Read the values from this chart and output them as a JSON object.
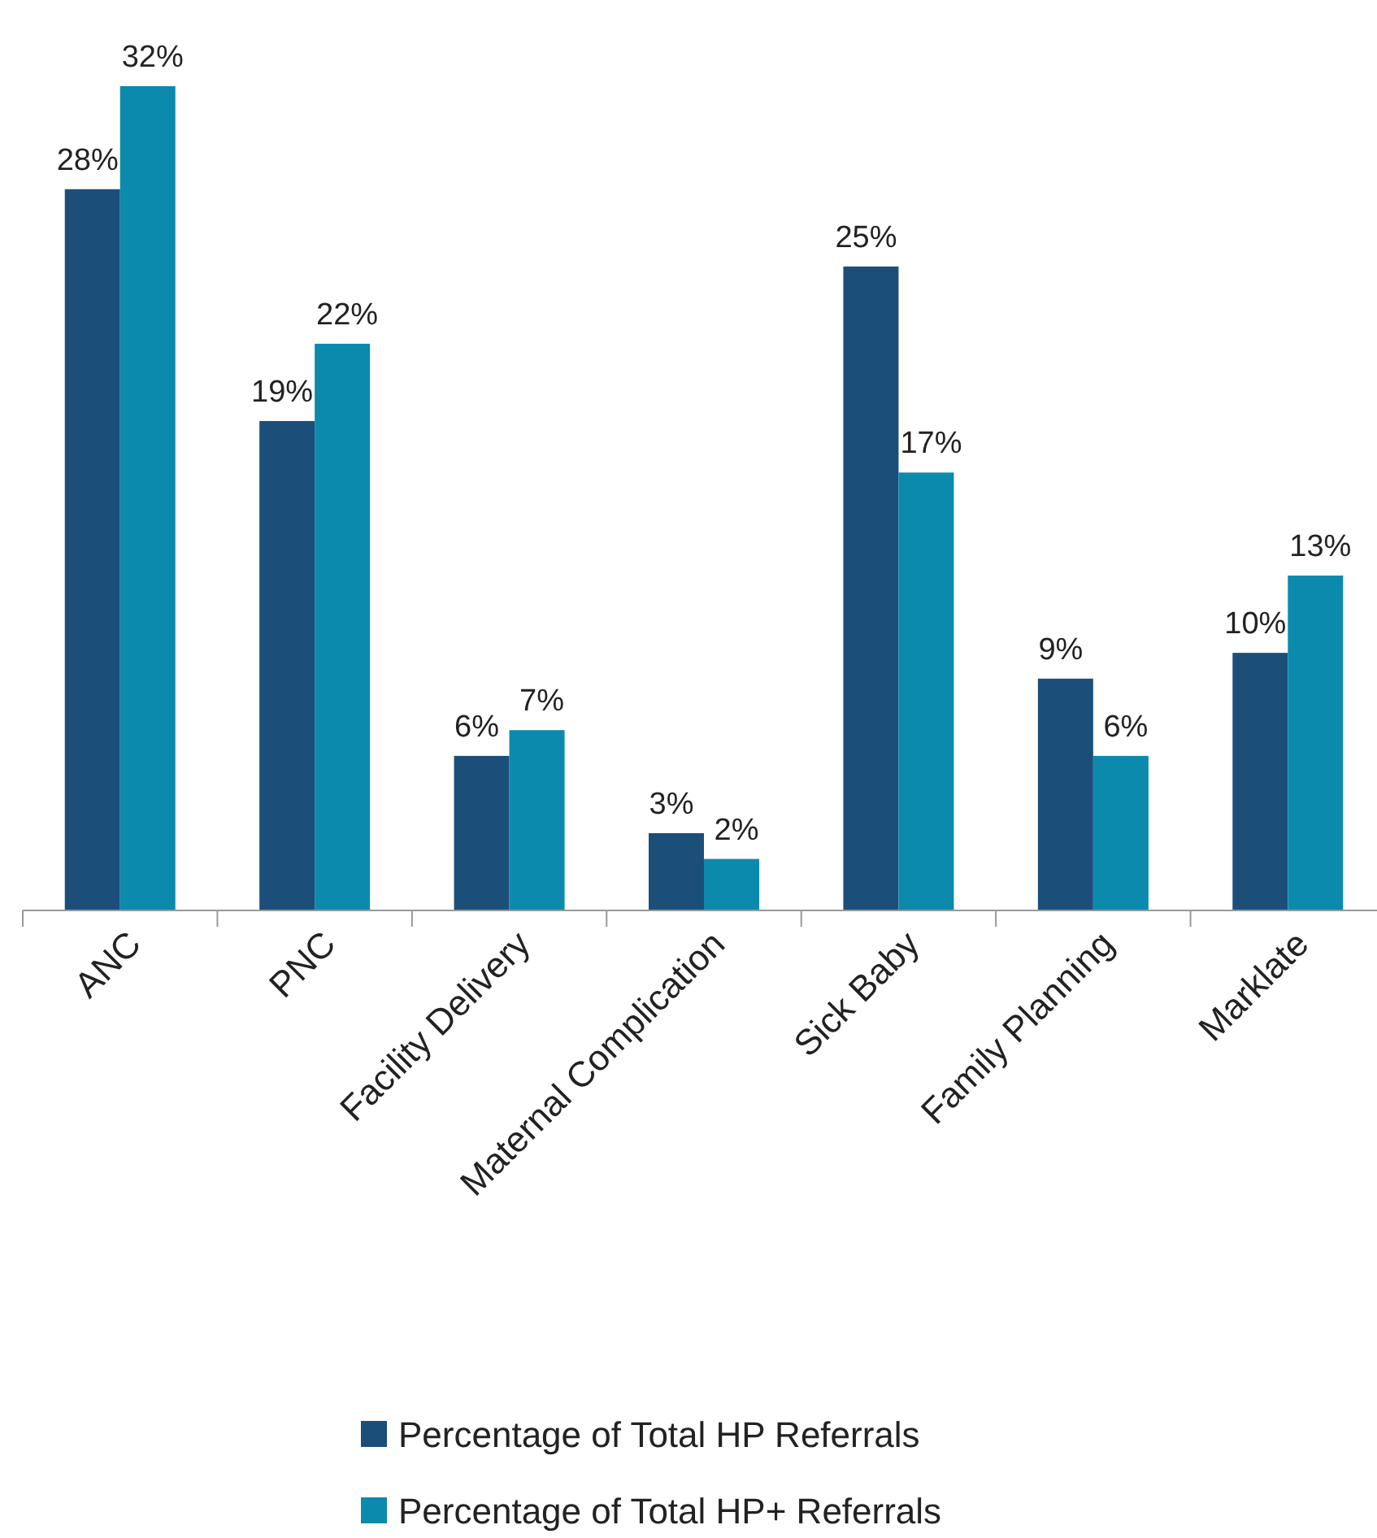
{
  "chart_data": {
    "type": "bar",
    "categories": [
      "ANC",
      "PNC",
      "Facility Delivery",
      "Maternal Complication",
      "Sick Baby",
      "Family Planning",
      "Marklate"
    ],
    "series": [
      {
        "name": "Percentage of Total HP Referrals",
        "color": "#1b4f7a",
        "values": [
          28,
          19,
          6,
          3,
          25,
          9,
          10
        ],
        "value_labels": [
          "28%",
          "19%",
          "6%",
          "3%",
          "25%",
          "9%",
          "10%"
        ]
      },
      {
        "name": "Percentage of Total HP+ Referrals",
        "color": "#0b8aad",
        "values": [
          32,
          22,
          7,
          2,
          17,
          6,
          13
        ],
        "value_labels": [
          "32%",
          "22%",
          "7%",
          "2%",
          "17%",
          "6%",
          "13%"
        ]
      }
    ],
    "legend": "bottom"
  }
}
